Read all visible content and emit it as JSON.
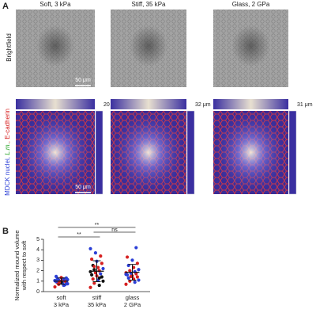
{
  "panel_a": {
    "label": "A",
    "columns": [
      "Soft, 3 kPa",
      "Stiff, 35 kPa",
      "Glass, 2 GPa"
    ],
    "row_label": "Brightfield",
    "scale_bar_top": "50 μm",
    "scale_bar_bottom": "50 μm",
    "depths": [
      "20 μm",
      "32 μm",
      "31 μm"
    ],
    "stain_label": [
      {
        "text": "MDCK nuclei, ",
        "color": "#2b3fd6"
      },
      {
        "text": "L.m.",
        "color": "#1fa01f"
      },
      {
        "text": ", E-cadherin",
        "color": "#d62020"
      }
    ]
  },
  "panel_b": {
    "label": "B",
    "type": "dot",
    "ylabel": [
      "Normalized mound volume",
      "with respect to soft"
    ],
    "categories": [
      [
        "soft",
        "3 kPa"
      ],
      [
        "stiff",
        "35 kPa"
      ],
      [
        "glass",
        "2 GPa"
      ]
    ],
    "ylim": [
      0,
      5
    ],
    "yticks": [
      0,
      1,
      2,
      3,
      4,
      5
    ],
    "groups": [
      {
        "values": [
          0.45,
          0.6,
          0.7,
          0.75,
          0.8,
          0.85,
          0.9,
          0.9,
          0.95,
          1.0,
          1.0,
          1.05,
          1.1,
          1.1,
          1.15,
          1.2,
          1.25,
          1.3,
          1.35,
          1.45,
          0.65,
          0.95,
          1.05,
          1.2
        ],
        "colors": [
          "#d62020",
          "#2b3fd6",
          "#d62020",
          "#2b3fd6",
          "#2b3fd6",
          "#d62020",
          "#2b3fd6",
          "#111",
          "#2b3fd6",
          "#d62020",
          "#2b3fd6",
          "#2b3fd6",
          "#d62020",
          "#2b3fd6",
          "#2b3fd6",
          "#d62020",
          "#2b3fd6",
          "#2b3fd6",
          "#d62020",
          "#2b3fd6",
          "#2b3fd6",
          "#d62020",
          "#2b3fd6",
          "#2b3fd6"
        ],
        "mean": 1.0,
        "sd": 0.3
      },
      {
        "values": [
          0.4,
          0.6,
          0.8,
          1.0,
          1.1,
          1.2,
          1.4,
          1.5,
          1.6,
          1.7,
          1.8,
          1.9,
          2.0,
          2.1,
          2.2,
          2.3,
          2.5,
          2.7,
          2.9,
          3.1,
          3.4,
          3.7,
          4.1,
          1.3,
          2.4
        ],
        "colors": [
          "#d62020",
          "#111",
          "#d62020",
          "#111",
          "#2b3fd6",
          "#d62020",
          "#111",
          "#d62020",
          "#111",
          "#2b3fd6",
          "#d62020",
          "#111",
          "#d62020",
          "#111",
          "#2b3fd6",
          "#d62020",
          "#111",
          "#d62020",
          "#2b3fd6",
          "#d62020",
          "#d62020",
          "#2b3fd6",
          "#2b3fd6",
          "#111",
          "#d62020"
        ],
        "mean": 1.95,
        "sd": 1.0
      },
      {
        "values": [
          0.7,
          0.9,
          1.0,
          1.1,
          1.2,
          1.3,
          1.4,
          1.5,
          1.6,
          1.7,
          1.75,
          1.8,
          1.9,
          2.0,
          2.1,
          2.3,
          2.5,
          2.7,
          3.0,
          3.3,
          4.2,
          1.45,
          1.65
        ],
        "colors": [
          "#d62020",
          "#2b3fd6",
          "#d62020",
          "#2b3fd6",
          "#d62020",
          "#2b3fd6",
          "#d62020",
          "#d62020",
          "#2b3fd6",
          "#d62020",
          "#2b3fd6",
          "#d62020",
          "#2b3fd6",
          "#d62020",
          "#2b3fd6",
          "#d62020",
          "#2b3fd6",
          "#d62020",
          "#2b3fd6",
          "#d62020",
          "#2b3fd6",
          "#d62020",
          "#2b3fd6"
        ],
        "mean": 1.85,
        "sd": 0.75
      }
    ],
    "significance": [
      {
        "from": 0,
        "to": 2,
        "label": "**"
      },
      {
        "from": 1,
        "to": 2,
        "label": "ns"
      },
      {
        "from": 0,
        "to": 1,
        "label": "**"
      }
    ]
  }
}
